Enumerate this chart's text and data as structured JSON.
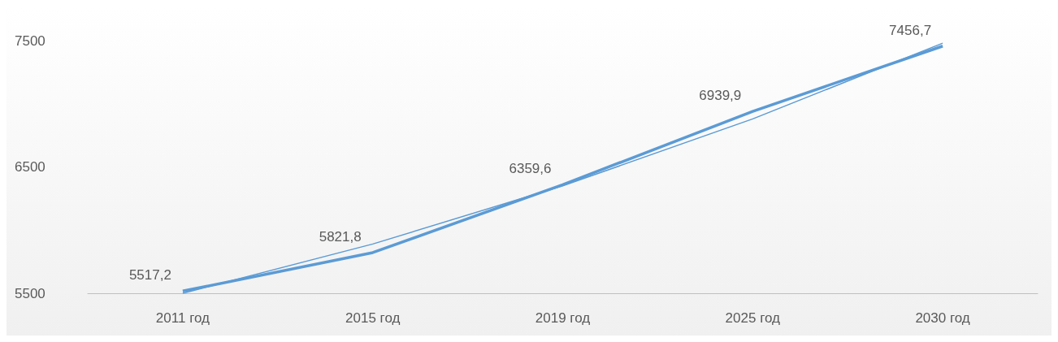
{
  "chart_data": {
    "type": "line",
    "categories": [
      "2011 год",
      "2015 год",
      "2019 год",
      "2025 год",
      "2030 год"
    ],
    "series": [
      {
        "color": "#5b9bd5",
        "values": [
          5517.2,
          5821.8,
          6359.6,
          6939.9,
          7456.7
        ],
        "value_labels": [
          "5517,2",
          "5821,8",
          "6359,6",
          "6939,9",
          "7456,7"
        ]
      },
      {
        "type": "line",
        "color": "#5b9bd5",
        "x": [
          "2011 год",
          "2015 год",
          "2019 год",
          "2025 год",
          "2030 год"
        ],
        "values": [
          5500,
          5890,
          6350,
          6880,
          7480
        ]
      }
    ],
    "ylim": [
      5500,
      7500
    ],
    "yticks": [
      5500,
      6500,
      7500
    ],
    "grid": false,
    "marker": "none"
  }
}
